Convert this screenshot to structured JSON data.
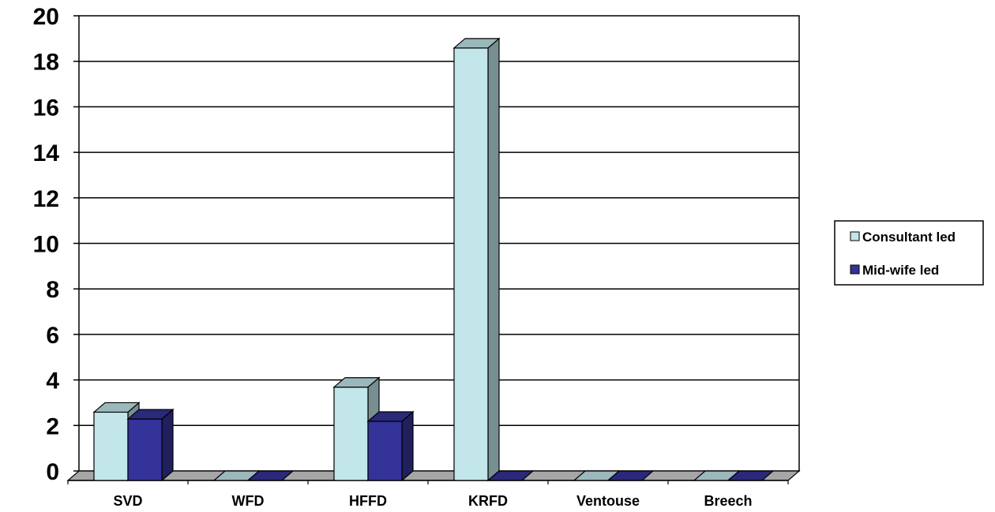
{
  "chart_data": {
    "type": "bar",
    "categories": [
      "SVD",
      "WFD",
      "HFFD",
      "KRFD",
      "Ventouse",
      "Breech"
    ],
    "series": [
      {
        "name": "Consultant led",
        "values": [
          3,
          0,
          4.1,
          19,
          0,
          0
        ],
        "color": "#c2e6ea"
      },
      {
        "name": "Mid-wife led",
        "values": [
          2.7,
          0,
          2.6,
          0,
          0,
          0
        ],
        "color": "#343399"
      }
    ],
    "ylim": [
      0,
      20
    ],
    "yticks": [
      "0",
      "2",
      "4",
      "6",
      "8",
      "10",
      "12",
      "14",
      "16",
      "18",
      "20"
    ],
    "grid": true,
    "legend_position": "right",
    "style": "3d-clustered-column"
  }
}
